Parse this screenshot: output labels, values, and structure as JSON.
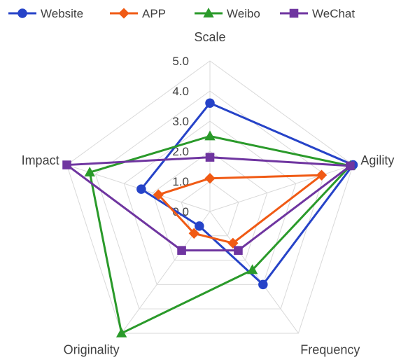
{
  "chart_data": {
    "type": "radar",
    "axes": [
      "Scale",
      "Agility",
      "Frequency",
      "Originality",
      "Impact"
    ],
    "rlim": [
      0,
      5
    ],
    "rticks": [
      "0.0",
      "1.0",
      "2.0",
      "3.0",
      "4.0",
      "5.0"
    ],
    "grid": true,
    "legend": "top",
    "series": [
      {
        "name": "Website",
        "color": "#2643c8",
        "marker": "circle",
        "values": [
          3.6,
          5.0,
          3.0,
          0.6,
          2.4
        ]
      },
      {
        "name": "APP",
        "color": "#f05a14",
        "marker": "diamond",
        "values": [
          1.1,
          3.9,
          1.3,
          0.9,
          1.8
        ]
      },
      {
        "name": "Weibo",
        "color": "#2a9a2a",
        "marker": "triangle",
        "values": [
          2.5,
          4.9,
          2.4,
          5.0,
          4.2
        ]
      },
      {
        "name": "WeChat",
        "color": "#6f35a0",
        "marker": "square",
        "values": [
          1.8,
          4.9,
          1.6,
          1.6,
          5.0
        ]
      }
    ]
  }
}
